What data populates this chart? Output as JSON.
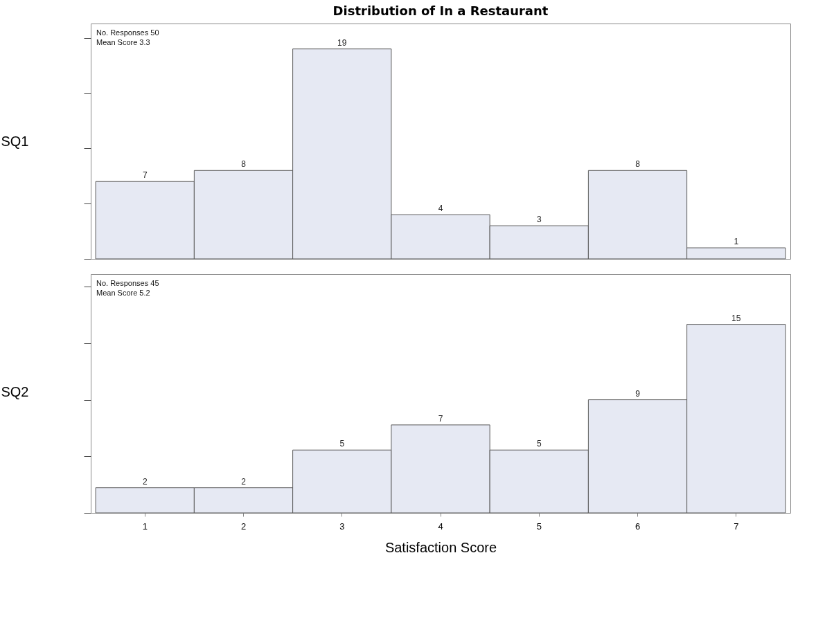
{
  "chart_data": [
    {
      "type": "bar",
      "title": "Distribution of In a Restaurant",
      "ylabel": "SQ1",
      "categories": [
        "1",
        "2",
        "3",
        "4",
        "5",
        "6",
        "7"
      ],
      "values": [
        7,
        8,
        19,
        4,
        3,
        8,
        1
      ],
      "color": "#e6e9f3",
      "ylim": [
        0,
        21.3
      ],
      "yticks": [
        {
          "value": 0,
          "label": null
        },
        {
          "value": 5,
          "label": null
        },
        {
          "value": 10,
          "label": null
        },
        {
          "value": 15,
          "label": null
        },
        {
          "value": 20,
          "label": null
        }
      ],
      "data_labels": true,
      "tick_labels": false,
      "annotations": [
        "No. Responses  50",
        "Mean Score        3.3"
      ]
    },
    {
      "type": "bar",
      "ylabel": "SQ2",
      "xlabel": "Satisfaction Score",
      "categories": [
        "1",
        "2",
        "3",
        "4",
        "5",
        "6",
        "7"
      ],
      "values": [
        2,
        2,
        5,
        7,
        5,
        9,
        15
      ],
      "color": "#e6e9f3",
      "ylim": [
        0,
        19
      ],
      "yticks": [
        {
          "value": 0,
          "label": null
        },
        {
          "value": 4.5,
          "label": null
        },
        {
          "value": 9,
          "label": null
        },
        {
          "value": 13.5,
          "label": null
        },
        {
          "value": 18,
          "label": null
        }
      ],
      "data_labels": true,
      "tick_labels": "x",
      "annotations": [
        "No. Responses  45",
        "Mean Score        5.2"
      ]
    }
  ]
}
